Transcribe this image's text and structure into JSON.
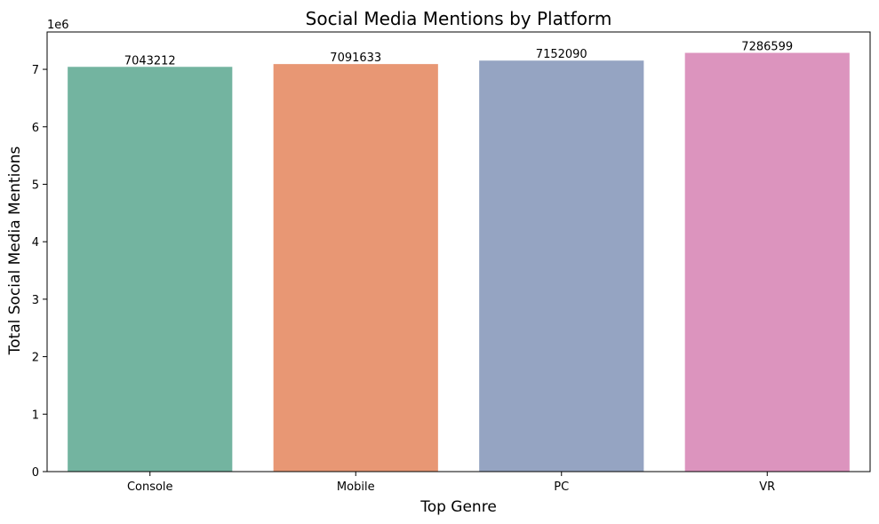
{
  "chart_data": {
    "type": "bar",
    "title": "Social Media Mentions by Platform",
    "xlabel": "Top Genre",
    "ylabel": "Total Social Media Mentions",
    "y_offset_label": "1e6",
    "categories": [
      "Console",
      "Mobile",
      "PC",
      "VR"
    ],
    "values": [
      7043212,
      7091633,
      7152090,
      7286599
    ],
    "data_labels": [
      "7043212",
      "7091633",
      "7152090",
      "7286599"
    ],
    "colors": [
      "#73b4a0",
      "#e89774",
      "#95a4c2",
      "#dc94be"
    ],
    "ylim": [
      0,
      7650000
    ],
    "yticks": [
      0,
      1,
      2,
      3,
      4,
      5,
      6,
      7
    ],
    "ytick_scale": 1000000,
    "grid": false,
    "legend": "none"
  }
}
